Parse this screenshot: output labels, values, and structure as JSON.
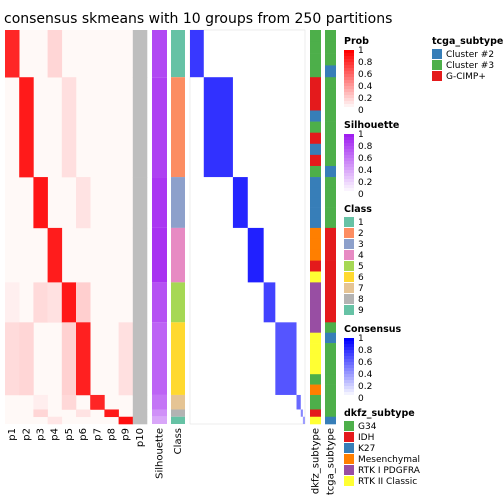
{
  "chart_data": {
    "type": "heatmap",
    "title": "consensus skmeans with 10 groups from 250 partitions",
    "membership_columns": [
      "p1",
      "p2",
      "p3",
      "p4",
      "p5",
      "p6",
      "p7",
      "p8",
      "p9",
      "p10"
    ],
    "annotation_columns": [
      "Silhouette",
      "Class"
    ],
    "right_annotation_columns": [
      "dkfz_subtype",
      "tcga_subtype"
    ],
    "class_blocks": [
      {
        "class": "1",
        "size": 26,
        "membership_col": 1,
        "silhouette": 0.82
      },
      {
        "class": "2",
        "size": 55,
        "membership_col": 2,
        "silhouette": 0.85
      },
      {
        "class": "3",
        "size": 28,
        "membership_col": 3,
        "silhouette": 0.9
      },
      {
        "class": "4",
        "size": 30,
        "membership_col": 4,
        "silhouette": 0.92
      },
      {
        "class": "5",
        "size": 22,
        "membership_col": 5,
        "silhouette": 0.78
      },
      {
        "class": "6",
        "size": 40,
        "membership_col": 6,
        "silhouette": 0.7
      },
      {
        "class": "7",
        "size": 8,
        "membership_col": 7,
        "silhouette": 0.62
      },
      {
        "class": "8",
        "size": 4,
        "membership_col": 8,
        "silhouette": 0.5
      },
      {
        "class": "9",
        "size": 4,
        "membership_col": 9,
        "silhouette": 0.4
      }
    ],
    "legends": [
      {
        "title": "Prob",
        "kind": "gradient",
        "low": "#ffffff",
        "high": "#ff0000",
        "ticks": [
          "1",
          "0.8",
          "0.6",
          "0.4",
          "0.2",
          "0"
        ]
      },
      {
        "title": "Silhouette",
        "kind": "gradient",
        "low": "#ffffff",
        "high": "#a020f0",
        "ticks": [
          "1",
          "0.8",
          "0.6",
          "0.4",
          "0.2",
          "0"
        ]
      },
      {
        "title": "Class",
        "kind": "discrete",
        "entries": [
          {
            "label": "1",
            "color": "#66c2a5"
          },
          {
            "label": "2",
            "color": "#fc8d62"
          },
          {
            "label": "3",
            "color": "#8da0cb"
          },
          {
            "label": "4",
            "color": "#e78ac3"
          },
          {
            "label": "5",
            "color": "#a6d854"
          },
          {
            "label": "6",
            "color": "#ffd92f"
          },
          {
            "label": "7",
            "color": "#e5c494"
          },
          {
            "label": "8",
            "color": "#b3b3b3"
          },
          {
            "label": "9",
            "color": "#66c2a5"
          }
        ]
      },
      {
        "title": "Consensus",
        "kind": "gradient",
        "low": "#ffffff",
        "high": "#0000ff",
        "ticks": [
          "1",
          "0.8",
          "0.6",
          "0.4",
          "0.2",
          "0"
        ]
      },
      {
        "title": "dkfz_subtype",
        "kind": "discrete",
        "entries": [
          {
            "label": "G34",
            "color": "#4daf4a"
          },
          {
            "label": "IDH",
            "color": "#e41a1c"
          },
          {
            "label": "K27",
            "color": "#377eb8"
          },
          {
            "label": "Mesenchymal",
            "color": "#ff7f00"
          },
          {
            "label": "RTK I PDGFRA",
            "color": "#984ea3"
          },
          {
            "label": "RTK II Classic",
            "color": "#ffff33"
          }
        ]
      },
      {
        "title": "tcga_subtype",
        "kind": "discrete",
        "entries": [
          {
            "label": "Cluster #2",
            "color": "#377eb8"
          },
          {
            "label": "Cluster #3",
            "color": "#4daf4a"
          },
          {
            "label": "G-CIMP+",
            "color": "#e41a1c"
          }
        ]
      }
    ]
  }
}
